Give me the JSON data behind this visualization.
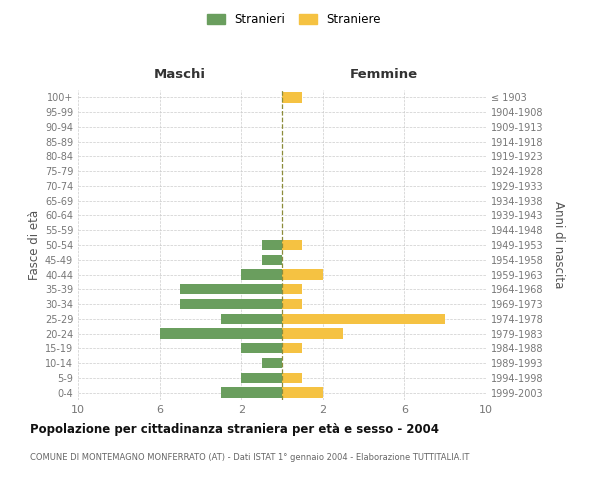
{
  "age_groups": [
    "100+",
    "95-99",
    "90-94",
    "85-89",
    "80-84",
    "75-79",
    "70-74",
    "65-69",
    "60-64",
    "55-59",
    "50-54",
    "45-49",
    "40-44",
    "35-39",
    "30-34",
    "25-29",
    "20-24",
    "15-19",
    "10-14",
    "5-9",
    "0-4"
  ],
  "birth_years": [
    "≤ 1903",
    "1904-1908",
    "1909-1913",
    "1914-1918",
    "1919-1923",
    "1924-1928",
    "1929-1933",
    "1934-1938",
    "1939-1943",
    "1944-1948",
    "1949-1953",
    "1954-1958",
    "1959-1963",
    "1964-1968",
    "1969-1973",
    "1974-1978",
    "1979-1983",
    "1984-1988",
    "1989-1993",
    "1994-1998",
    "1999-2003"
  ],
  "males": [
    0,
    0,
    0,
    0,
    0,
    0,
    0,
    0,
    0,
    0,
    1,
    1,
    2,
    5,
    5,
    3,
    6,
    2,
    1,
    2,
    3
  ],
  "females": [
    1,
    0,
    0,
    0,
    0,
    0,
    0,
    0,
    0,
    0,
    1,
    0,
    2,
    1,
    1,
    8,
    3,
    1,
    0,
    1,
    2
  ],
  "male_color": "#6a9e5e",
  "female_color": "#f5c242",
  "center_line_color": "#8c8c3a",
  "grid_color": "#cccccc",
  "background_color": "#ffffff",
  "title": "Popolazione per cittadinanza straniera per età e sesso - 2004",
  "subtitle": "COMUNE DI MONTEMAGNO MONFERRATO (AT) - Dati ISTAT 1° gennaio 2004 - Elaborazione TUTTITALIA.IT",
  "ylabel_left": "Fasce di età",
  "ylabel_right": "Anni di nascita",
  "xlabel_left": "Maschi",
  "xlabel_right": "Femmine",
  "legend_male": "Stranieri",
  "legend_female": "Straniere",
  "xlim": 10,
  "bar_height": 0.7
}
